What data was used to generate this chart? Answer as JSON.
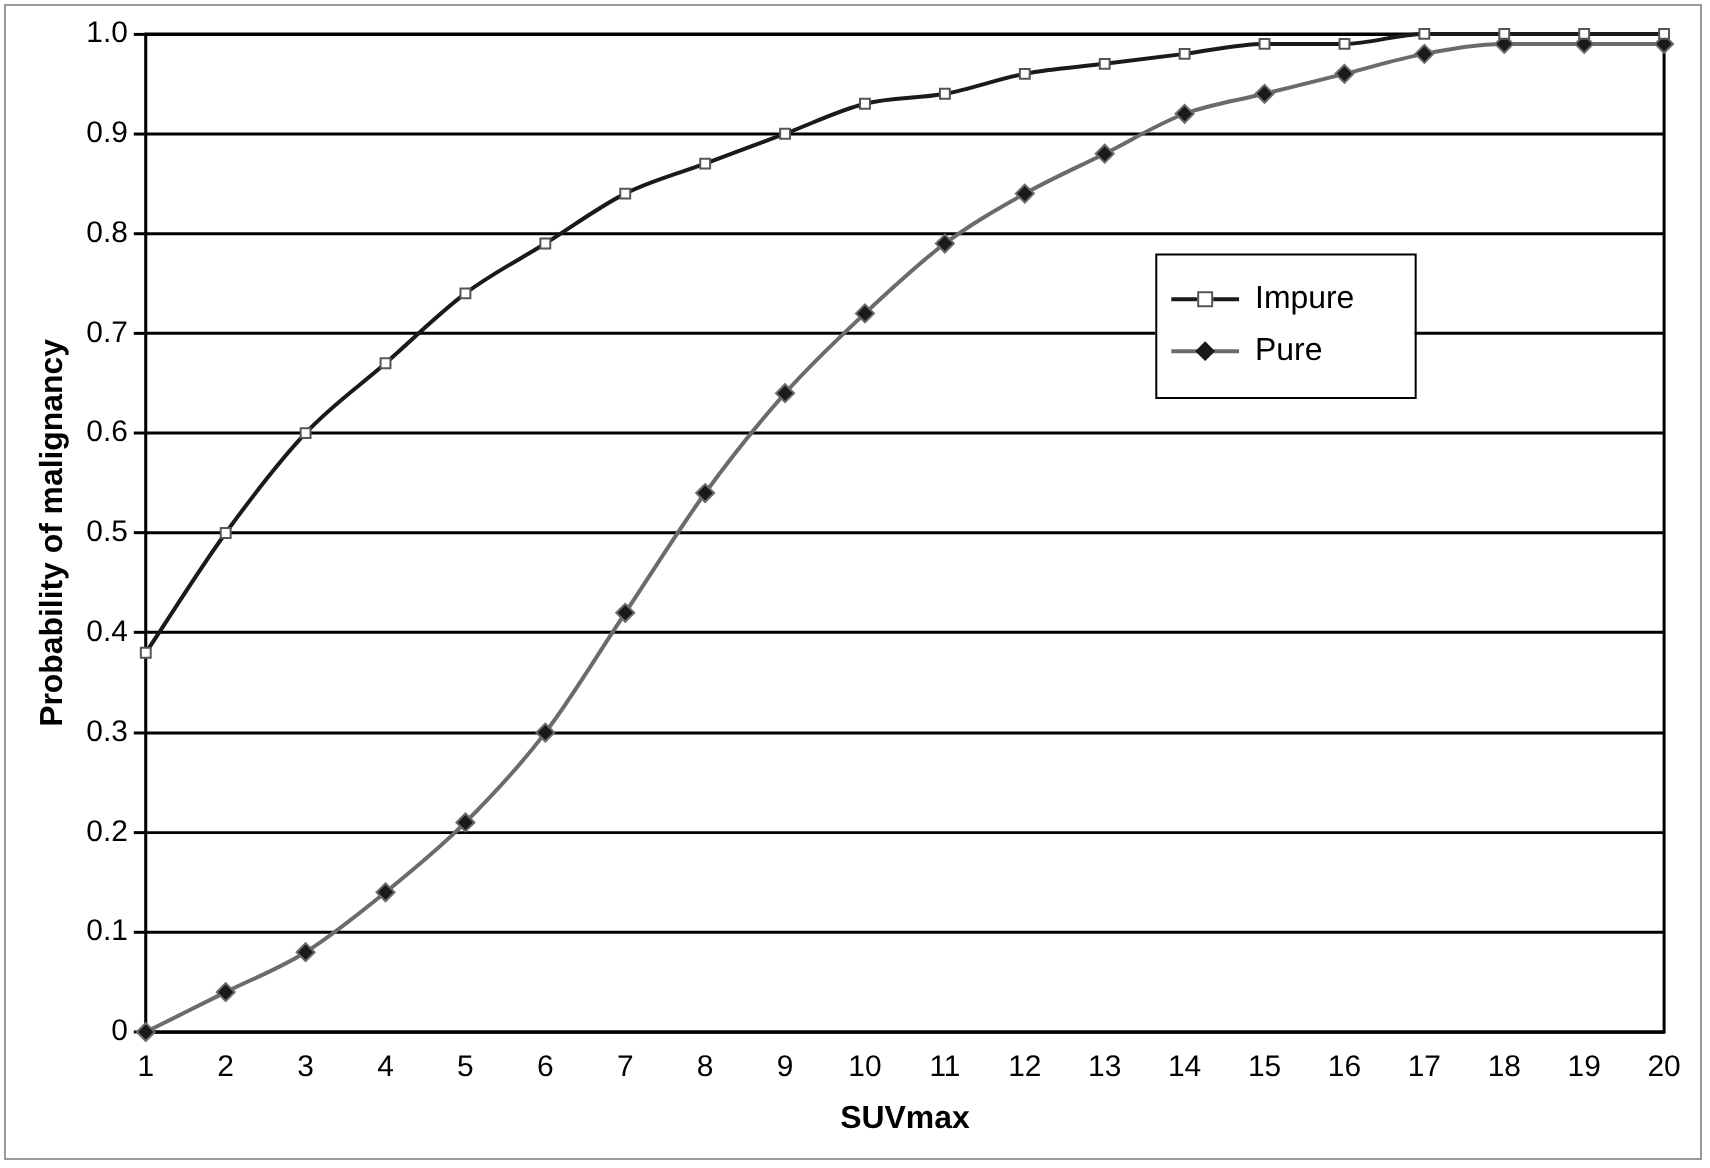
{
  "chart_data": {
    "type": "line",
    "xlabel": "SUVmax",
    "ylabel": "Probability of malignancy",
    "x": [
      1,
      2,
      3,
      4,
      5,
      6,
      7,
      8,
      9,
      10,
      11,
      12,
      13,
      14,
      15,
      16,
      17,
      18,
      19,
      20
    ],
    "series": [
      {
        "name": "Impure",
        "color": "#1a1a1a",
        "marker": "square",
        "values": [
          0.38,
          0.5,
          0.6,
          0.67,
          0.74,
          0.79,
          0.84,
          0.87,
          0.9,
          0.93,
          0.94,
          0.96,
          0.97,
          0.98,
          0.99,
          0.99,
          1.0,
          1.0,
          1.0,
          1.0
        ]
      },
      {
        "name": "Pure",
        "color": "#6b6b6b",
        "marker": "diamond",
        "values": [
          0.0,
          0.04,
          0.08,
          0.14,
          0.21,
          0.3,
          0.42,
          0.54,
          0.64,
          0.72,
          0.79,
          0.84,
          0.88,
          0.92,
          0.94,
          0.96,
          0.98,
          0.99,
          0.99,
          0.99
        ]
      }
    ],
    "xlim": [
      1,
      20
    ],
    "xticks": [
      1,
      2,
      3,
      4,
      5,
      6,
      7,
      8,
      9,
      10,
      11,
      12,
      13,
      14,
      15,
      16,
      17,
      18,
      19,
      20
    ],
    "ylim": [
      0,
      1
    ],
    "yticks": [
      0,
      {
        "value": 0.1,
        "label": "0.1"
      },
      {
        "value": 0.2,
        "label": "0.2"
      },
      {
        "value": 0.3,
        "label": "0.3"
      },
      {
        "value": 0.4,
        "label": "0.4"
      },
      {
        "value": 0.5,
        "label": "0.5"
      },
      {
        "value": 0.6,
        "label": "0.6"
      },
      {
        "value": 0.7,
        "label": "0.7"
      },
      {
        "value": 0.8,
        "label": "0.8"
      },
      {
        "value": 0.9,
        "label": "0.9"
      },
      {
        "value": 1,
        "label": "1.0"
      }
    ],
    "grid": "y",
    "legend": "right",
    "line_style": "solid"
  }
}
